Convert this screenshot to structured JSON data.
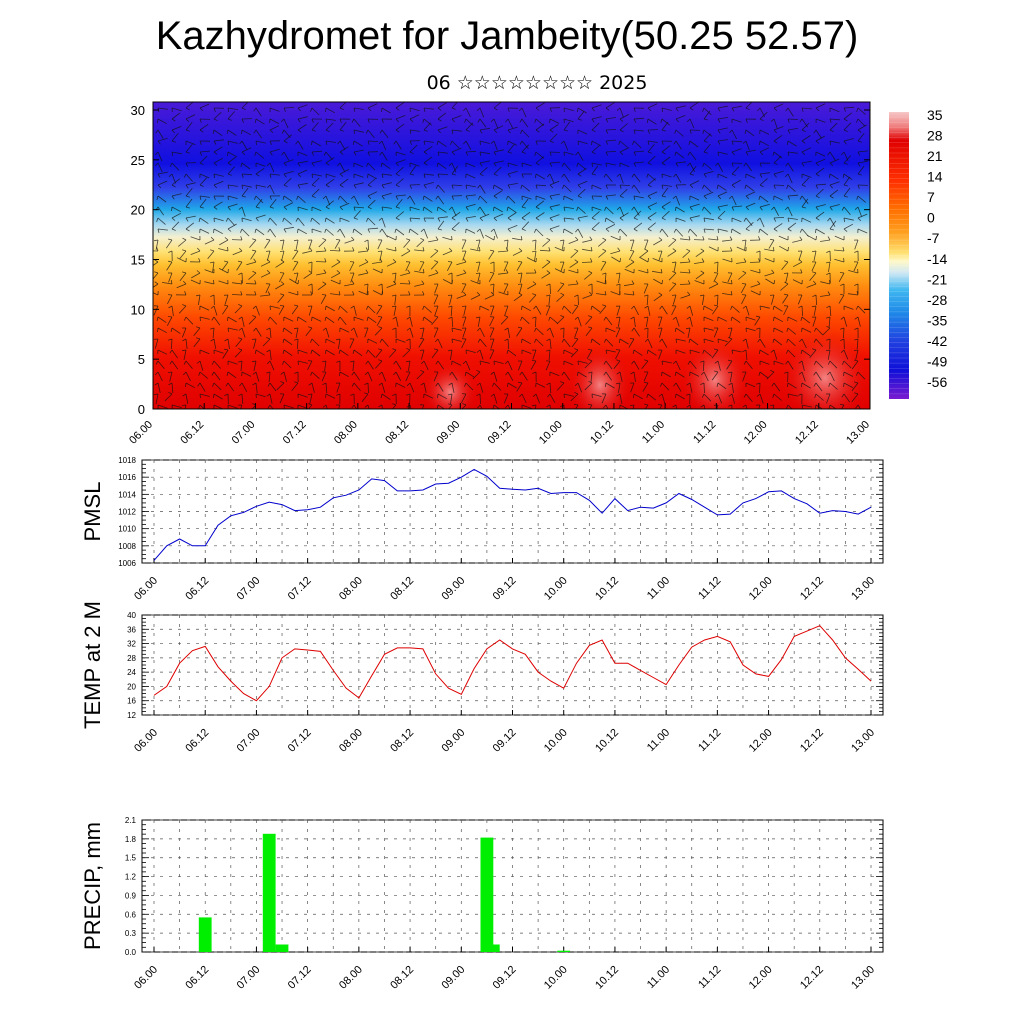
{
  "header": {
    "title": "Kazhydromet for Jambeity(50.25 52.57)",
    "subtitle": "06 ☆☆☆☆☆☆☆☆ 2025"
  },
  "time_labels": [
    "06.00",
    "06.12",
    "07.00",
    "07.12",
    "08.00",
    "08.12",
    "09.00",
    "09.12",
    "10.00",
    "10.12",
    "11.00",
    "11.12",
    "12.00",
    "12.12",
    "13.00"
  ],
  "chart_data": [
    {
      "type": "heatmap",
      "title": "",
      "ylabel": "",
      "ylim": [
        0,
        30
      ],
      "y_ticks": [
        "0",
        "5",
        "10",
        "15",
        "20",
        "25",
        "30"
      ],
      "colorbar_labels": [
        "35",
        "28",
        "21",
        "14",
        "7",
        "0",
        "-7",
        "-14",
        "-21",
        "-28",
        "-35",
        "-42",
        "-49",
        "-56"
      ],
      "colors": {
        "hot": "#e00000",
        "warm": "#ff6600",
        "yellow": "#ffe070",
        "light_blue": "#a8d8f0",
        "cyan": "#20a8e8",
        "blue": "#1010e0",
        "violet": "#5a18c8"
      },
      "wind_barbs": true
    },
    {
      "type": "line",
      "ylabel": "PMSL",
      "ylim": [
        1006,
        1018
      ],
      "y_ticks": [
        "1006",
        "1008",
        "1010",
        "1012",
        "1014",
        "1016",
        "1018"
      ],
      "series_color": "#0000cc",
      "values": [
        1006.3,
        1008.0,
        1008.8,
        1008.0,
        1008.0,
        1010.4,
        1011.5,
        1011.9,
        1012.6,
        1013.1,
        1012.8,
        1012.1,
        1012.2,
        1012.5,
        1013.6,
        1013.9,
        1014.5,
        1015.8,
        1015.6,
        1014.4,
        1014.4,
        1014.5,
        1015.2,
        1015.3,
        1016.0,
        1016.9,
        1016.1,
        1014.7,
        1014.6,
        1014.5,
        1014.7,
        1014.1,
        1014.2,
        1014.2,
        1013.3,
        1011.8,
        1013.5,
        1012.1,
        1012.5,
        1012.4,
        1013.0,
        1014.1,
        1013.4,
        1012.5,
        1011.6,
        1011.7,
        1013.0,
        1013.5,
        1014.3,
        1014.4,
        1013.5,
        1012.9,
        1011.8,
        1012.1,
        1012.0,
        1011.7,
        1012.5
      ],
      "grid": true
    },
    {
      "type": "line",
      "ylabel": "TEMP at 2 M",
      "ylim": [
        12,
        40
      ],
      "y_ticks": [
        "12",
        "16",
        "20",
        "24",
        "28",
        "32",
        "36",
        "40"
      ],
      "series_color": "#dd0000",
      "values": [
        17.5,
        20.0,
        26.5,
        30.0,
        31.2,
        25.5,
        21.5,
        18.0,
        16.0,
        20.0,
        28.0,
        30.5,
        30.2,
        29.8,
        24.5,
        19.5,
        16.8,
        23.0,
        29.0,
        30.8,
        30.8,
        30.5,
        23.5,
        19.5,
        17.8,
        25.0,
        30.5,
        33.0,
        30.5,
        29.0,
        24.0,
        21.5,
        19.5,
        26.5,
        31.5,
        33.0,
        26.5,
        26.5,
        24.5,
        22.5,
        20.5,
        26.0,
        31.0,
        33.0,
        34.0,
        32.5,
        26.0,
        23.5,
        22.8,
        27.5,
        34.0,
        35.5,
        37.0,
        33.0,
        28.0,
        24.8,
        21.5
      ],
      "grid": true
    },
    {
      "type": "bar",
      "ylabel": "PRECIP, mm",
      "ylim": [
        0,
        2.1
      ],
      "y_ticks": [
        "0.0",
        "0.3",
        "0.6",
        "0.9",
        "1.2",
        "1.5",
        "1.8",
        "2.1"
      ],
      "series_color": "#00ee00",
      "bars": [
        {
          "t": 1.0,
          "value": 0.55
        },
        {
          "t": 2.25,
          "value": 1.88
        },
        {
          "t": 2.5,
          "value": 0.12
        },
        {
          "t": 6.5,
          "value": 1.82
        },
        {
          "t": 6.625,
          "value": 0.12
        },
        {
          "t": 8.0,
          "value": 0.02
        }
      ],
      "grid": true
    }
  ]
}
